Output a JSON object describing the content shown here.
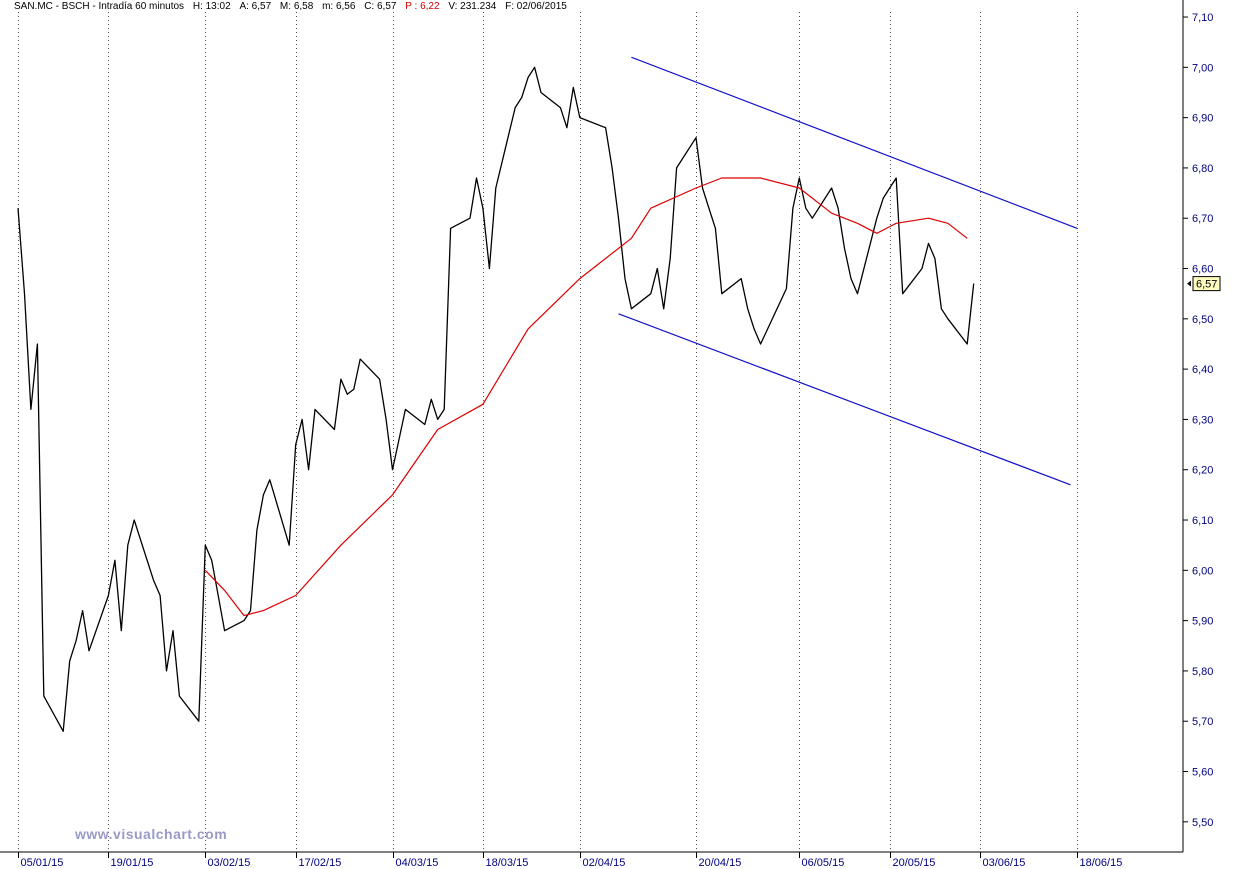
{
  "header": {
    "symbol": "SAN.MC - BSCH - Intradía 60 minutos",
    "hora_label": "H:",
    "hora": "13:02",
    "apertura_label": "A:",
    "apertura": "6,57",
    "maximo_label": "M:",
    "maximo": "6,58",
    "minimo_label": "m:",
    "minimo": "6,56",
    "cierre_label": "C:",
    "cierre": "6,57",
    "p_label": "P :",
    "p": "6,22",
    "volumen_label": "V:",
    "volumen": "231.234",
    "fecha_label": "F:",
    "fecha": "02/06/2015"
  },
  "watermark": "www.visualchart.com",
  "colors": {
    "price": "#000000",
    "moving_average": "#dd0000",
    "channel": "#1010c8",
    "axis_text": "#000080",
    "grid": "#000000",
    "last_price_box": "#ffffc0"
  },
  "chart_data": {
    "type": "line",
    "title": "",
    "xlabel": "",
    "ylabel": "",
    "ylim": [
      5.44,
      7.11
    ],
    "y_ticks": [
      "7,10",
      "7,00",
      "6,90",
      "6,80",
      "6,70",
      "6,60",
      "6,50",
      "6,40",
      "6,30",
      "6,20",
      "6,10",
      "6,00",
      "5,90",
      "5,80",
      "5,70",
      "5,60",
      "5,50"
    ],
    "x_ticks": [
      "05/01/15",
      "19/01/15",
      "03/02/15",
      "17/02/15",
      "04/03/15",
      "18/03/15",
      "02/04/15",
      "20/04/15",
      "06/05/15",
      "20/05/15",
      "03/06/15",
      "18/06/15"
    ],
    "grid": "vertical dotted at each date tick",
    "last_price_label": "6,57",
    "series": [
      {
        "role": "price (hourly close, approximate)",
        "x": [
          "05/01/15",
          "06/01/15",
          "07/01/15",
          "08/01/15",
          "09/01/15",
          "12/01/15",
          "13/01/15",
          "14/01/15",
          "15/01/15",
          "16/01/15",
          "19/01/15",
          "20/01/15",
          "21/01/15",
          "22/01/15",
          "23/01/15",
          "26/01/15",
          "27/01/15",
          "28/01/15",
          "29/01/15",
          "30/01/15",
          "02/02/15",
          "03/02/15",
          "04/02/15",
          "05/02/15",
          "06/02/15",
          "09/02/15",
          "10/02/15",
          "11/02/15",
          "12/02/15",
          "13/02/15",
          "16/02/15",
          "17/02/15",
          "18/02/15",
          "19/02/15",
          "20/02/15",
          "23/02/15",
          "24/02/15",
          "25/02/15",
          "26/02/15",
          "27/02/15",
          "02/03/15",
          "03/03/15",
          "04/03/15",
          "05/03/15",
          "06/03/15",
          "09/03/15",
          "10/03/15",
          "11/03/15",
          "12/03/15",
          "13/03/15",
          "16/03/15",
          "17/03/15",
          "18/03/15",
          "19/03/15",
          "20/03/15",
          "23/03/15",
          "24/03/15",
          "25/03/15",
          "26/03/15",
          "27/03/15",
          "30/03/15",
          "31/03/15",
          "01/04/15",
          "02/04/15",
          "06/04/15",
          "07/04/15",
          "08/04/15",
          "09/04/15",
          "10/04/15",
          "13/04/15",
          "14/04/15",
          "15/04/15",
          "16/04/15",
          "17/04/15",
          "20/04/15",
          "21/04/15",
          "22/04/15",
          "23/04/15",
          "24/04/15",
          "27/04/15",
          "28/04/15",
          "29/04/15",
          "30/04/15",
          "04/05/15",
          "05/05/15",
          "06/05/15",
          "07/05/15",
          "08/05/15",
          "11/05/15",
          "12/05/15",
          "13/05/15",
          "14/05/15",
          "15/05/15",
          "18/05/15",
          "19/05/15",
          "20/05/15",
          "21/05/15",
          "22/05/15",
          "25/05/15",
          "26/05/15",
          "27/05/15",
          "28/05/15",
          "29/05/15",
          "01/06/15",
          "02/06/15"
        ],
        "values": [
          6.72,
          6.55,
          6.32,
          6.45,
          5.75,
          5.68,
          5.82,
          5.86,
          5.92,
          5.84,
          5.95,
          6.02,
          5.88,
          6.05,
          6.1,
          5.98,
          5.95,
          5.8,
          5.88,
          5.75,
          5.7,
          6.05,
          6.02,
          5.95,
          5.88,
          5.9,
          5.92,
          6.08,
          6.15,
          6.18,
          6.05,
          6.25,
          6.3,
          6.2,
          6.32,
          6.28,
          6.38,
          6.35,
          6.36,
          6.42,
          6.38,
          6.3,
          6.2,
          6.26,
          6.32,
          6.29,
          6.34,
          6.3,
          6.32,
          6.68,
          6.7,
          6.78,
          6.72,
          6.6,
          6.76,
          6.92,
          6.94,
          6.98,
          7.0,
          6.95,
          6.92,
          6.88,
          6.96,
          6.9,
          6.88,
          6.8,
          6.7,
          6.58,
          6.52,
          6.55,
          6.6,
          6.52,
          6.62,
          6.8,
          6.86,
          6.76,
          6.72,
          6.68,
          6.55,
          6.58,
          6.52,
          6.48,
          6.45,
          6.56,
          6.72,
          6.78,
          6.72,
          6.7,
          6.76,
          6.72,
          6.64,
          6.58,
          6.55,
          6.7,
          6.74,
          6.76,
          6.78,
          6.55,
          6.6,
          6.65,
          6.62,
          6.52,
          6.5,
          6.45,
          6.57
        ]
      },
      {
        "role": "moving average (approximate)",
        "x": [
          "03/02/15",
          "06/02/15",
          "09/02/15",
          "12/02/15",
          "17/02/15",
          "24/02/15",
          "04/03/15",
          "11/03/15",
          "18/03/15",
          "25/03/15",
          "02/04/15",
          "10/04/15",
          "13/04/15",
          "20/04/15",
          "24/04/15",
          "30/04/15",
          "06/05/15",
          "11/05/15",
          "15/05/15",
          "18/05/15",
          "21/05/15",
          "26/05/15",
          "29/05/15",
          "01/06/15"
        ],
        "values": [
          6.0,
          5.96,
          5.91,
          5.92,
          5.95,
          6.05,
          6.15,
          6.28,
          6.33,
          6.48,
          6.58,
          6.66,
          6.72,
          6.76,
          6.78,
          6.78,
          6.76,
          6.71,
          6.69,
          6.67,
          6.69,
          6.7,
          6.69,
          6.66
        ]
      }
    ],
    "annotations": [
      {
        "type": "trendline",
        "role": "channel upper",
        "from": {
          "x": "10/04/15",
          "y": 7.02
        },
        "to": {
          "x": "18/06/15",
          "y": 6.68
        }
      },
      {
        "type": "trendline",
        "role": "channel lower",
        "from": {
          "x": "08/04/15",
          "y": 6.51
        },
        "to": {
          "x": "17/06/15",
          "y": 6.17
        }
      }
    ]
  }
}
